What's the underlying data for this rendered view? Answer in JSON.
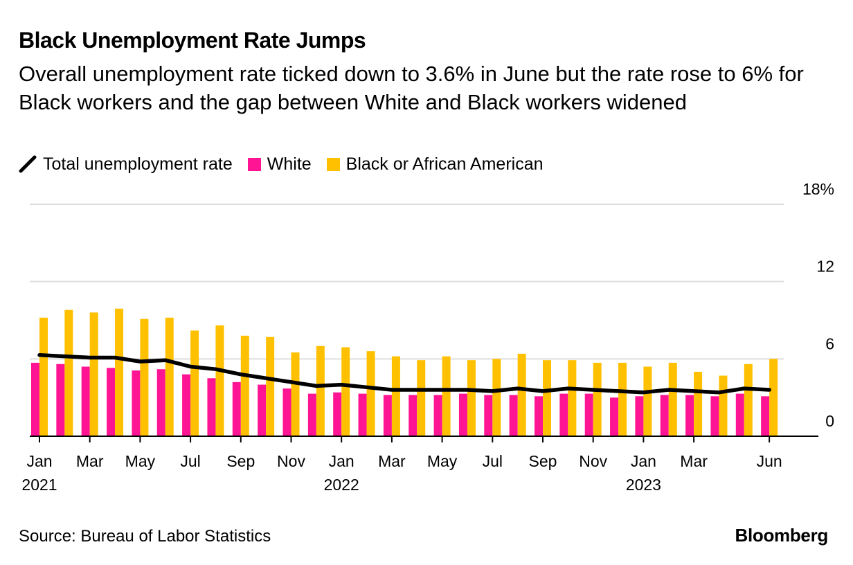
{
  "header": {
    "title": "Black Unemployment Rate Jumps",
    "subtitle": "Overall unemployment rate ticked down to 3.6% in June but the rate rose to 6% for Black workers and the gap between White and Black workers widened"
  },
  "legend": {
    "total": "Total unemployment rate",
    "white": "White",
    "black": "Black or African American"
  },
  "colors": {
    "total": "#000000",
    "white": "#ff1493",
    "black": "#ffc000",
    "grid": "#dddddd",
    "axis": "#000000"
  },
  "footer": {
    "source": "Source: Bureau of Labor Statistics",
    "brand": "Bloomberg"
  },
  "chart_data": {
    "type": "bar",
    "title": "Black Unemployment Rate Jumps",
    "ylim": [
      0,
      18
    ],
    "yticks": [
      0,
      6,
      12,
      18
    ],
    "ytick_labels": [
      "0",
      "6",
      "12",
      "18%"
    ],
    "categories": [
      "Jan 2021",
      "Feb 2021",
      "Mar 2021",
      "Apr 2021",
      "May 2021",
      "Jun 2021",
      "Jul 2021",
      "Aug 2021",
      "Sep 2021",
      "Oct 2021",
      "Nov 2021",
      "Dec 2021",
      "Jan 2022",
      "Feb 2022",
      "Mar 2022",
      "Apr 2022",
      "May 2022",
      "Jun 2022",
      "Jul 2022",
      "Aug 2022",
      "Sep 2022",
      "Oct 2022",
      "Nov 2022",
      "Dec 2022",
      "Jan 2023",
      "Feb 2023",
      "Mar 2023",
      "Apr 2023",
      "May 2023",
      "Jun 2023"
    ],
    "x_tick_labels": [
      {
        "index": 0,
        "month": "Jan",
        "year": "2021"
      },
      {
        "index": 2,
        "month": "Mar",
        "year": ""
      },
      {
        "index": 4,
        "month": "May",
        "year": ""
      },
      {
        "index": 6,
        "month": "Jul",
        "year": ""
      },
      {
        "index": 8,
        "month": "Sep",
        "year": ""
      },
      {
        "index": 10,
        "month": "Nov",
        "year": ""
      },
      {
        "index": 12,
        "month": "Jan",
        "year": "2022"
      },
      {
        "index": 14,
        "month": "Mar",
        "year": ""
      },
      {
        "index": 16,
        "month": "May",
        "year": ""
      },
      {
        "index": 18,
        "month": "Jul",
        "year": ""
      },
      {
        "index": 20,
        "month": "Sep",
        "year": ""
      },
      {
        "index": 22,
        "month": "Nov",
        "year": ""
      },
      {
        "index": 24,
        "month": "Jan",
        "year": "2023"
      },
      {
        "index": 26,
        "month": "Mar",
        "year": ""
      },
      {
        "index": 29,
        "month": "Jun",
        "year": ""
      }
    ],
    "series": [
      {
        "name": "White",
        "type": "bar",
        "values": [
          5.7,
          5.6,
          5.4,
          5.3,
          5.1,
          5.2,
          4.8,
          4.5,
          4.2,
          4.0,
          3.7,
          3.3,
          3.4,
          3.3,
          3.2,
          3.2,
          3.2,
          3.3,
          3.2,
          3.2,
          3.1,
          3.3,
          3.3,
          3.0,
          3.1,
          3.2,
          3.2,
          3.1,
          3.3,
          3.1
        ]
      },
      {
        "name": "Black or African American",
        "type": "bar",
        "values": [
          9.2,
          9.8,
          9.6,
          9.9,
          9.1,
          9.2,
          8.2,
          8.6,
          7.8,
          7.7,
          6.5,
          7.0,
          6.9,
          6.6,
          6.2,
          5.9,
          6.2,
          5.9,
          6.0,
          6.4,
          5.9,
          5.9,
          5.7,
          5.7,
          5.4,
          5.7,
          5.0,
          4.7,
          5.6,
          6.0
        ]
      },
      {
        "name": "Total unemployment rate",
        "type": "line",
        "values": [
          6.3,
          6.2,
          6.1,
          6.1,
          5.8,
          5.9,
          5.4,
          5.2,
          4.8,
          4.5,
          4.2,
          3.9,
          4.0,
          3.8,
          3.6,
          3.6,
          3.6,
          3.6,
          3.5,
          3.7,
          3.5,
          3.7,
          3.6,
          3.5,
          3.4,
          3.6,
          3.5,
          3.4,
          3.7,
          3.6
        ]
      }
    ]
  }
}
